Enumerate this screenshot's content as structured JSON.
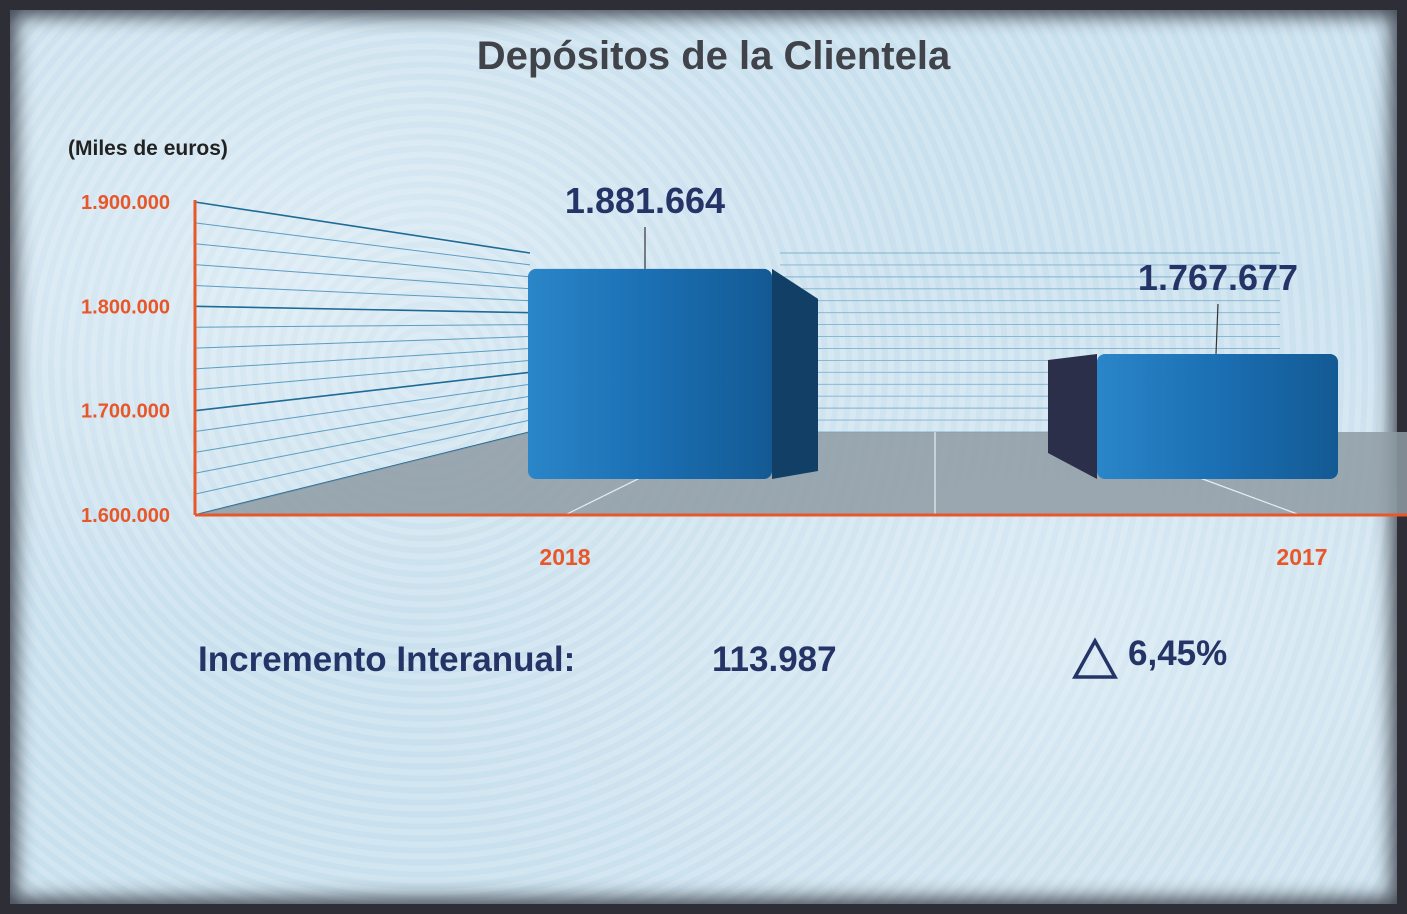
{
  "title": "Depósitos de la Clientela",
  "unit_label": "(Miles de euros)",
  "summary": {
    "increment_label": "Incremento Interanual:",
    "increment_value": "113.987",
    "delta_icon": "triangle-delta-icon",
    "percent_value": "6,45%"
  },
  "colors": {
    "axis": "#e8572a",
    "bar_front": "#1b6fb3",
    "bar_side": "#123f66",
    "label": "#253466"
  },
  "chart_data": {
    "type": "bar",
    "categories": [
      "2018",
      "2017"
    ],
    "values": [
      1881664,
      1767677
    ],
    "data_labels": [
      "1.881.664",
      "1.767.677"
    ],
    "yticks": [
      "1.600.000",
      "1.700.000",
      "1.800.000",
      "1.900.000"
    ],
    "ylim": [
      1600000,
      1900000
    ],
    "ylabel": "(Miles de euros)",
    "grid": true,
    "style": "3d"
  }
}
